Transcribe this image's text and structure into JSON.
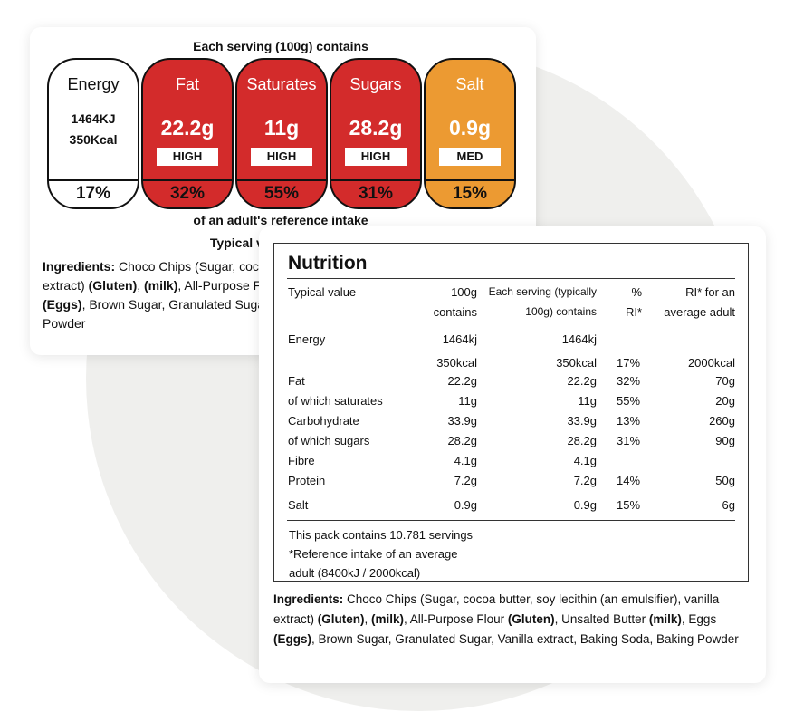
{
  "front_label": {
    "heading": "Each serving (100g) contains",
    "energy": {
      "name": "Energy",
      "kj": "1464KJ",
      "kcal": "350Kcal",
      "percent": "17%"
    },
    "nutrients": [
      {
        "name": "Fat",
        "value": "22.2g",
        "level": "HIGH",
        "percent": "32%",
        "color": "#d32b2b"
      },
      {
        "name": "Saturates",
        "value": "11g",
        "level": "HIGH",
        "percent": "55%",
        "color": "#d32b2b"
      },
      {
        "name": "Sugars",
        "value": "28.2g",
        "level": "HIGH",
        "percent": "31%",
        "color": "#d32b2b"
      },
      {
        "name": "Salt",
        "value": "0.9g",
        "level": "MED",
        "percent": "15%",
        "color": "#ec9a32"
      }
    ],
    "ri_caption": "of an adult's reference intake",
    "typical_caption": "Typical values (as sold)",
    "ingredients": {
      "label": "Ingredients:",
      "p1": " Choco Chips (Sugar, cocoa butter, soy lecithin (an emulsifier), vanilla extract) ",
      "gluten1": "(Gluten)",
      "sep1": ", ",
      "milk1": "(milk)",
      "p2": ", All-Purpose Flour ",
      "gluten2": "(Gluten)",
      "p3": ", Unsalted Butter ",
      "milk2": "(milk)",
      "p4": ", Eggs ",
      "eggs": "(Eggs)",
      "p5": ", Brown Sugar, Granulated Sugar, Vanilla extract, Baking Soda, Baking Powder"
    }
  },
  "nutrition": {
    "title": "Nutrition",
    "headers": {
      "typical": "Typical value",
      "per100_a": "100g",
      "per100_b": "contains",
      "serving_a": "Each serving (typically",
      "serving_b": "100g) contains",
      "ri_a": "%",
      "ri_b": "RI*",
      "adult_a": "RI* for an",
      "adult_b": "average adult"
    },
    "rows": [
      {
        "name": "Energy",
        "per100": "1464kj",
        "serving": "1464kj",
        "ri": "",
        "adult": ""
      },
      {
        "name": "",
        "per100": "350kcal",
        "serving": "350kcal",
        "ri": "17%",
        "adult": "2000kcal"
      },
      {
        "name": "Fat",
        "per100": "22.2g",
        "serving": "22.2g",
        "ri": "32%",
        "adult": "70g"
      },
      {
        "name": "of which saturates",
        "per100": "11g",
        "serving": "11g",
        "ri": "55%",
        "adult": "20g"
      },
      {
        "name": "Carbohydrate",
        "per100": "33.9g",
        "serving": "33.9g",
        "ri": "13%",
        "adult": "260g"
      },
      {
        "name": "of which sugars",
        "per100": "28.2g",
        "serving": "28.2g",
        "ri": "31%",
        "adult": "90g"
      },
      {
        "name": "Fibre",
        "per100": "4.1g",
        "serving": "4.1g",
        "ri": "",
        "adult": ""
      },
      {
        "name": "Protein",
        "per100": "7.2g",
        "serving": "7.2g",
        "ri": "14%",
        "adult": "50g"
      },
      {
        "name": "Salt",
        "per100": "0.9g",
        "serving": "0.9g",
        "ri": "15%",
        "adult": "6g"
      }
    ],
    "pack_line": "This pack contains 10.781 servings",
    "footnote_1": "*Reference intake of an average",
    "footnote_2": "adult (8400kJ / 2000kcal)"
  }
}
